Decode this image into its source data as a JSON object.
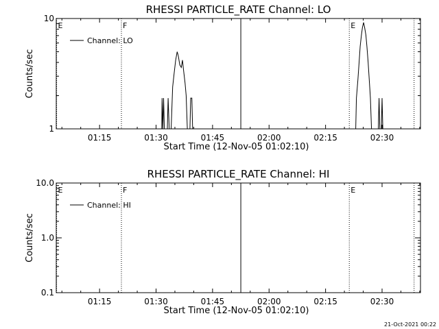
{
  "footer_timestamp": "21-Oct-2021 00:22",
  "colors": {
    "background": "#ffffff",
    "foreground": "#000000"
  },
  "chart_data": [
    {
      "type": "line",
      "title": "RHESSI PARTICLE_RATE Channel: LO",
      "xlabel": "Start Time (12-Nov-05 01:02:10)",
      "ylabel": "Counts/sec",
      "x_units": "minutes",
      "xlim": [
        63.5,
        160.2
      ],
      "x_ticks": [
        {
          "value": 75,
          "label": "01:15"
        },
        {
          "value": 90,
          "label": "01:30"
        },
        {
          "value": 105,
          "label": "01:45"
        },
        {
          "value": 120,
          "label": "02:00"
        },
        {
          "value": 135,
          "label": "02:15"
        },
        {
          "value": 150,
          "label": "02:30"
        }
      ],
      "y_scale": "log",
      "ylim": [
        1,
        10
      ],
      "y_ticks": [
        {
          "value": 1,
          "label": "1"
        },
        {
          "value": 10,
          "label": "10"
        }
      ],
      "legend": {
        "entries": [
          "Channel: LO"
        ],
        "position": "top-left"
      },
      "markers": [
        {
          "x": 63.6,
          "label": "E",
          "style": "dotted"
        },
        {
          "x": 80.8,
          "label": "F",
          "style": "dotted"
        },
        {
          "x": 112.5,
          "label": "",
          "style": "solid"
        },
        {
          "x": 141.3,
          "label": "E",
          "style": "dotted"
        },
        {
          "x": 158.5,
          "label": "",
          "style": "dotted"
        }
      ],
      "series": [
        {
          "name": "Channel: LO",
          "points": [
            [
              91.5,
              1
            ],
            [
              91.6,
              1.9
            ],
            [
              91.8,
              1
            ],
            [
              92.0,
              1.9
            ],
            [
              92.2,
              1
            ],
            [
              93.0,
              1
            ],
            [
              93.2,
              1.9
            ],
            [
              93.5,
              1
            ],
            [
              94.0,
              1
            ],
            [
              94.4,
              2.4
            ],
            [
              94.8,
              3.2
            ],
            [
              95.2,
              4.2
            ],
            [
              95.6,
              5.0
            ],
            [
              95.9,
              4.6
            ],
            [
              96.3,
              3.8
            ],
            [
              96.7,
              3.6
            ],
            [
              97.0,
              4.2
            ],
            [
              97.3,
              3.4
            ],
            [
              97.7,
              2.6
            ],
            [
              98.0,
              2.0
            ],
            [
              98.3,
              1.0
            ],
            [
              98.6,
              1.0
            ],
            [
              99.0,
              1.0
            ],
            [
              99.2,
              1.9
            ],
            [
              99.5,
              1.9
            ],
            [
              99.7,
              1.0
            ],
            [
              143.0,
              1
            ],
            [
              143.2,
              1.9
            ],
            [
              143.6,
              2.8
            ],
            [
              143.9,
              4.0
            ],
            [
              144.2,
              5.6
            ],
            [
              144.5,
              7.0
            ],
            [
              144.8,
              8.3
            ],
            [
              145.1,
              9.2
            ],
            [
              145.4,
              8.2
            ],
            [
              145.7,
              7.1
            ],
            [
              146.0,
              5.5
            ],
            [
              146.3,
              4.0
            ],
            [
              146.6,
              2.8
            ],
            [
              146.9,
              1.9
            ],
            [
              147.2,
              1
            ],
            [
              149.0,
              1
            ],
            [
              149.2,
              1.9
            ],
            [
              149.4,
              1
            ],
            [
              149.8,
              1
            ],
            [
              150.0,
              1.9
            ],
            [
              150.2,
              1
            ]
          ]
        }
      ]
    },
    {
      "type": "line",
      "title": "RHESSI PARTICLE_RATE Channel: HI",
      "xlabel": "Start Time (12-Nov-05 01:02:10)",
      "ylabel": "Counts/sec",
      "x_units": "minutes",
      "xlim": [
        63.5,
        160.2
      ],
      "x_ticks": [
        {
          "value": 75,
          "label": "01:15"
        },
        {
          "value": 90,
          "label": "01:30"
        },
        {
          "value": 105,
          "label": "01:45"
        },
        {
          "value": 120,
          "label": "02:00"
        },
        {
          "value": 135,
          "label": "02:15"
        },
        {
          "value": 150,
          "label": "02:30"
        }
      ],
      "y_scale": "log",
      "ylim": [
        0.1,
        10
      ],
      "y_ticks": [
        {
          "value": 0.1,
          "label": "0.1"
        },
        {
          "value": 1,
          "label": "1.0"
        },
        {
          "value": 10,
          "label": "10.0"
        }
      ],
      "legend": {
        "entries": [
          "Channel: HI"
        ],
        "position": "top-left"
      },
      "markers": [
        {
          "x": 63.6,
          "label": "E",
          "style": "dotted"
        },
        {
          "x": 80.8,
          "label": "F",
          "style": "dotted"
        },
        {
          "x": 112.5,
          "label": "",
          "style": "solid"
        },
        {
          "x": 141.3,
          "label": "E",
          "style": "dotted"
        },
        {
          "x": 158.5,
          "label": "",
          "style": "dotted"
        }
      ],
      "series": [
        {
          "name": "Channel: HI",
          "points": []
        }
      ]
    }
  ]
}
